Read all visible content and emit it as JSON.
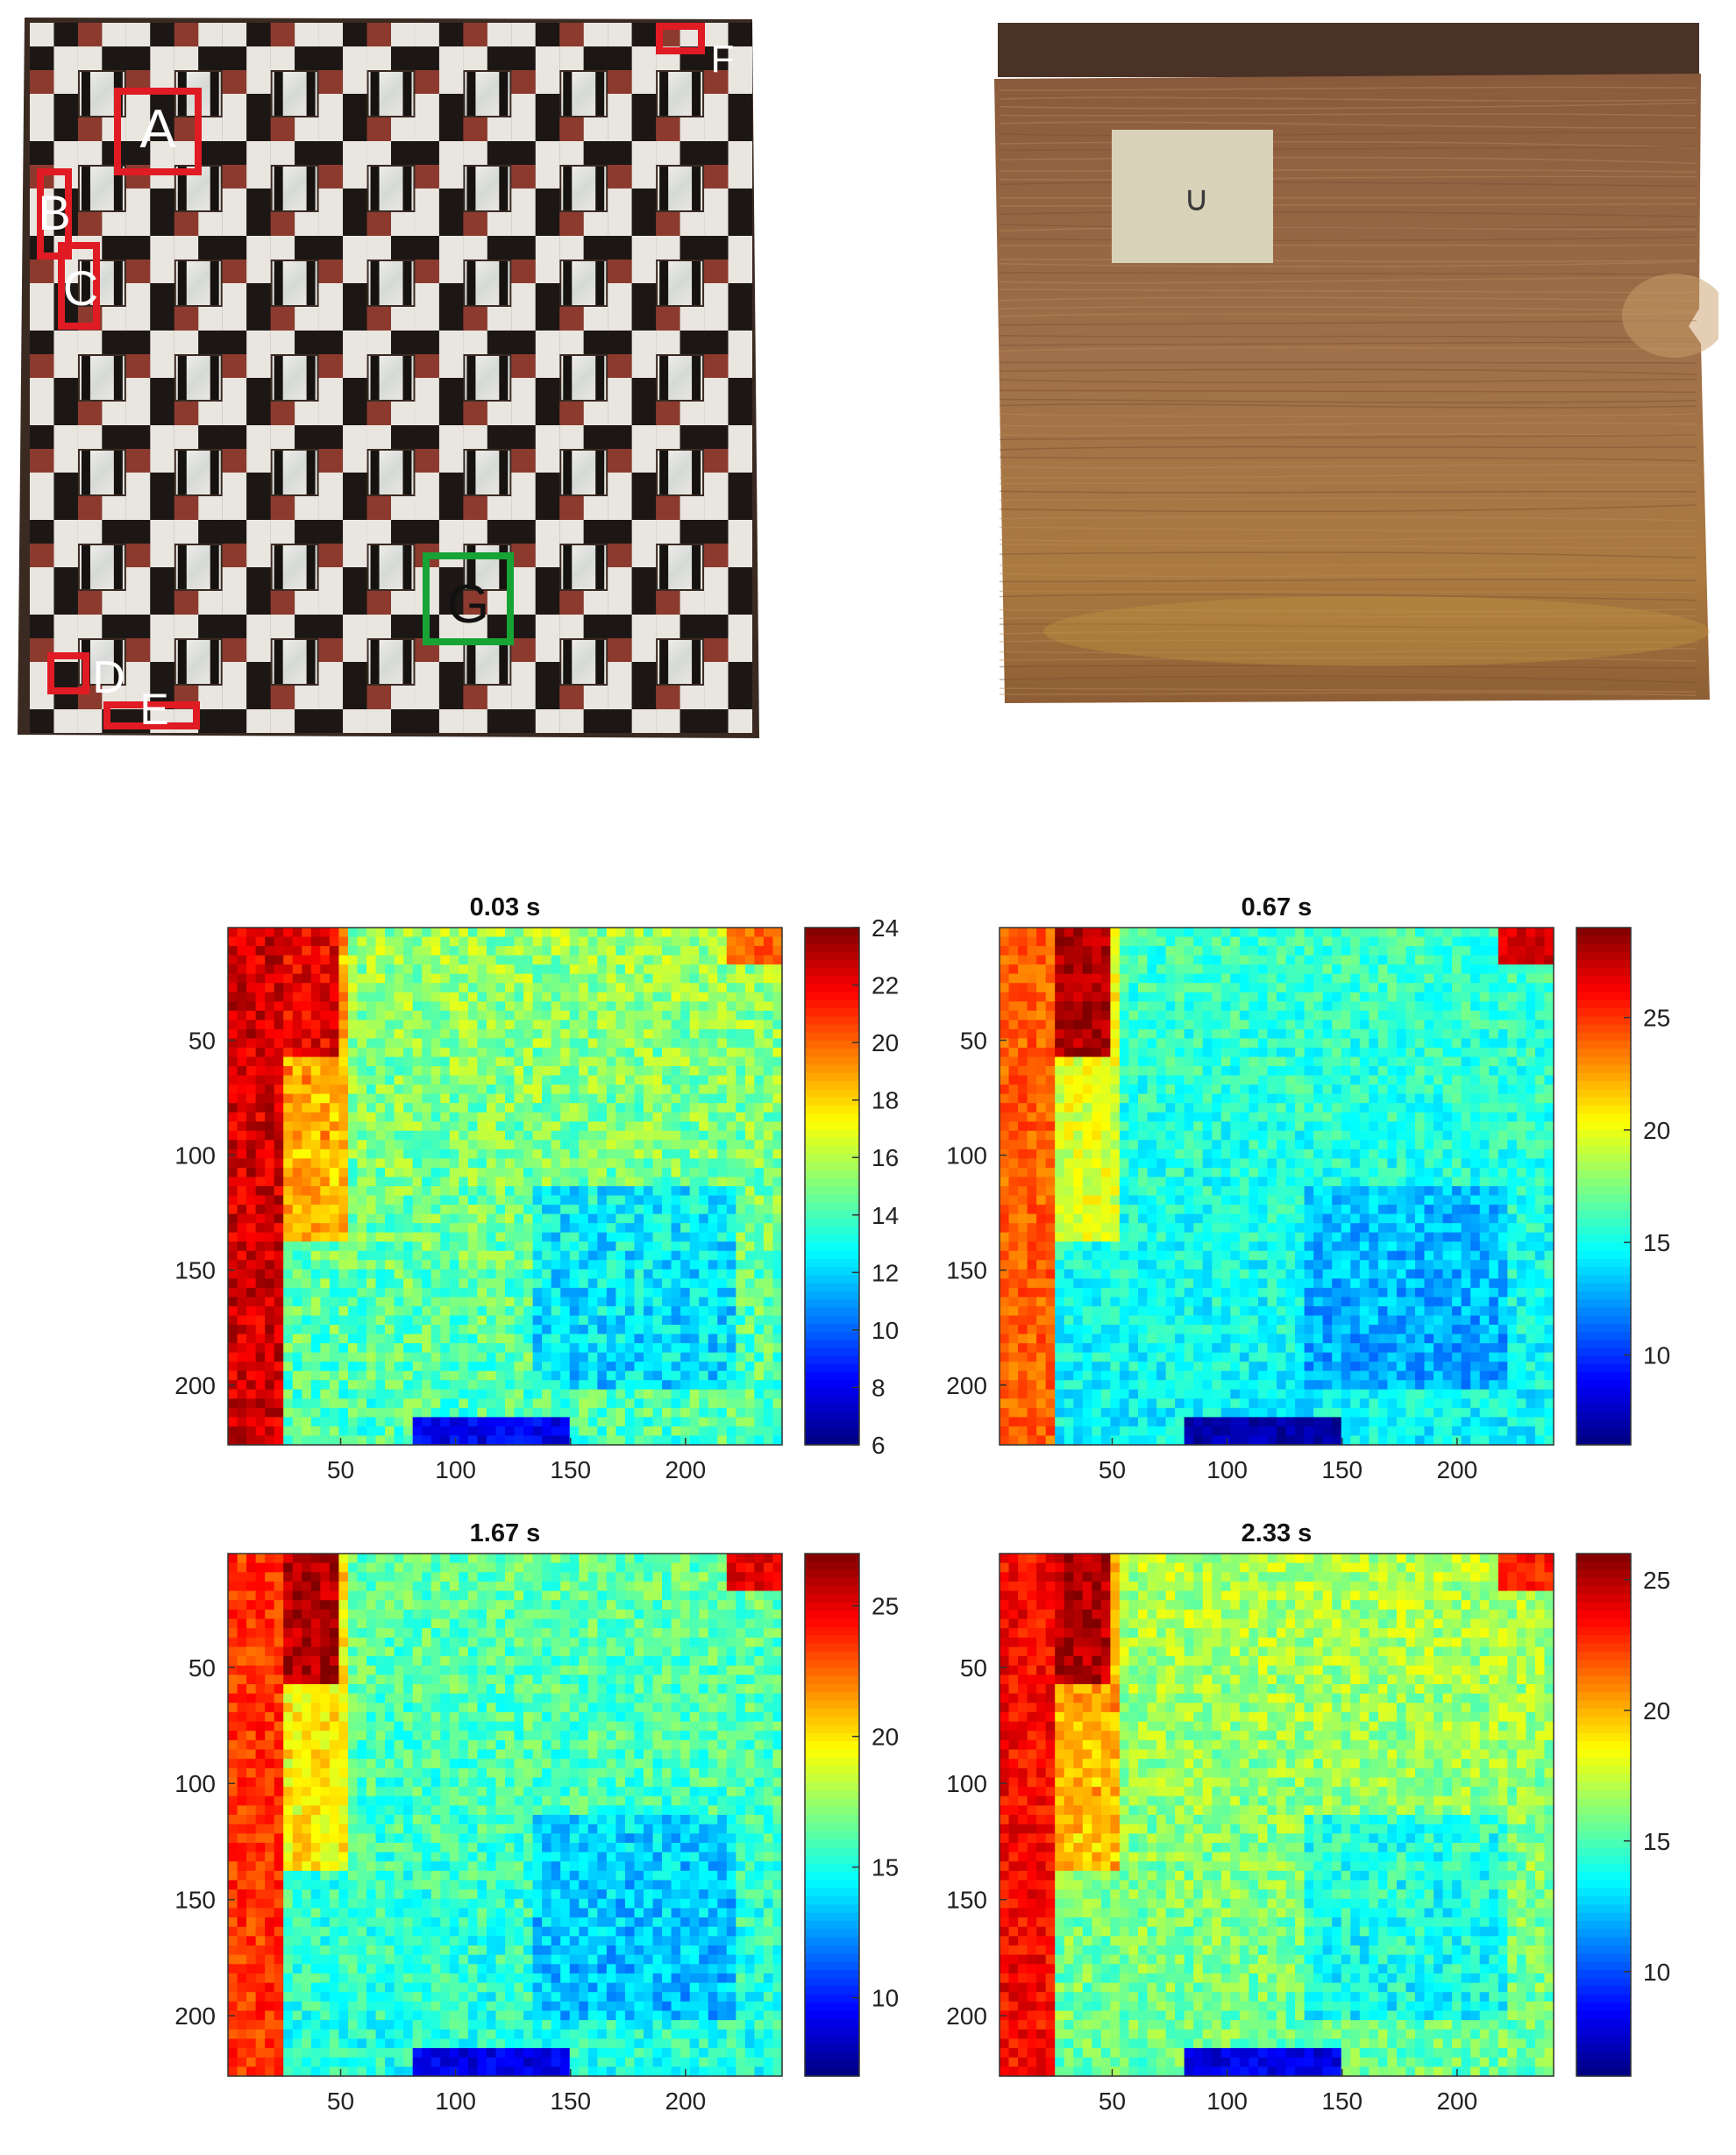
{
  "photos": {
    "inlay_panel": {
      "region_labels": [
        {
          "text": "A",
          "color": "#e01b24"
        },
        {
          "text": "B",
          "color": "#e01b24"
        },
        {
          "text": "C",
          "color": "#e01b24"
        },
        {
          "text": "D",
          "color": "#e01b24"
        },
        {
          "text": "E",
          "color": "#e01b24"
        },
        {
          "text": "F",
          "color": "#e01b24"
        },
        {
          "text": "G",
          "color": "#18a335"
        }
      ]
    },
    "wood_back": {
      "note_label": "∪"
    }
  },
  "chart_data": [
    {
      "type": "heatmap",
      "title": "0.03 s",
      "xlabel": "",
      "ylabel": "",
      "xlim": [
        1,
        242
      ],
      "ylim": [
        1,
        226
      ],
      "xticks": [
        50,
        100,
        150,
        200
      ],
      "yticks": [
        50,
        100,
        150,
        200
      ],
      "colorbar": {
        "min": 6,
        "max": 24,
        "ticks": [
          24,
          22,
          20,
          18,
          16,
          14,
          12,
          10,
          8,
          6
        ]
      },
      "pattern": {
        "base": 15.5,
        "left_band": 22.5,
        "upper_left_block": 22,
        "bottom_low": 8,
        "top_right_hot": 20
      },
      "colormap": "jet"
    },
    {
      "type": "heatmap",
      "title": "0.67 s",
      "xlabel": "",
      "ylabel": "",
      "xlim": [
        1,
        242
      ],
      "ylim": [
        1,
        226
      ],
      "xticks": [
        50,
        100,
        150,
        200
      ],
      "yticks": [
        50,
        100,
        150,
        200
      ],
      "colorbar": {
        "min": 6,
        "max": 29,
        "ticks": [
          25,
          20,
          15,
          10
        ]
      },
      "pattern": {
        "base": 16,
        "left_band": 24,
        "upper_left_block": 28,
        "bottom_low": 7,
        "top_right_hot": 27
      },
      "colormap": "jet"
    },
    {
      "type": "heatmap",
      "title": "1.67 s",
      "xlabel": "",
      "ylabel": "",
      "xlim": [
        1,
        242
      ],
      "ylim": [
        1,
        226
      ],
      "xticks": [
        50,
        100,
        150,
        200
      ],
      "yticks": [
        50,
        100,
        150,
        200
      ],
      "colorbar": {
        "min": 7,
        "max": 27,
        "ticks": [
          25,
          20,
          15,
          10
        ]
      },
      "pattern": {
        "base": 16.5,
        "left_band": 23.5,
        "upper_left_block": 26,
        "bottom_low": 9,
        "top_right_hot": 25
      },
      "colormap": "jet"
    },
    {
      "type": "heatmap",
      "title": "2.33 s",
      "xlabel": "",
      "ylabel": "",
      "xlim": [
        1,
        242
      ],
      "ylim": [
        1,
        226
      ],
      "xticks": [
        50,
        100,
        150,
        200
      ],
      "yticks": [
        50,
        100,
        150,
        200
      ],
      "colorbar": {
        "min": 6,
        "max": 26,
        "ticks": [
          25,
          20,
          15,
          10
        ]
      },
      "pattern": {
        "base": 17,
        "left_band": 23.5,
        "upper_left_block": 25,
        "bottom_low": 8,
        "top_right_hot": 23
      },
      "colormap": "jet"
    }
  ]
}
